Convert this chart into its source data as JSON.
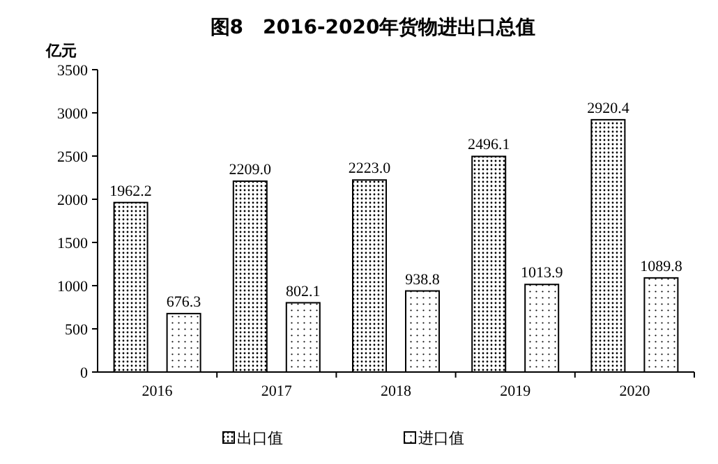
{
  "chart_data": {
    "type": "bar",
    "title": "图8　2016-2020年货物进出口总值",
    "ylabel": "亿元",
    "categories": [
      "2016",
      "2017",
      "2018",
      "2019",
      "2020"
    ],
    "series": [
      {
        "name": "出口值",
        "color": "#000000",
        "values": [
          1962.2,
          2209.0,
          2223.0,
          2496.1,
          2920.4
        ],
        "value_labels": [
          "1962.2",
          "2209.0",
          "2223.0",
          "2496.1",
          "2920.4"
        ]
      },
      {
        "name": "进口值",
        "color": "#000000",
        "values": [
          676.3,
          802.1,
          938.8,
          1013.9,
          1089.8
        ],
        "value_labels": [
          "676.3",
          "802.1",
          "938.8",
          "1013.9",
          "1089.8"
        ]
      }
    ],
    "ylim": [
      0,
      3500
    ],
    "yticks": [
      0,
      500,
      1000,
      1500,
      2000,
      2500,
      3000,
      3500
    ],
    "legend": "bottom",
    "grid": false
  }
}
